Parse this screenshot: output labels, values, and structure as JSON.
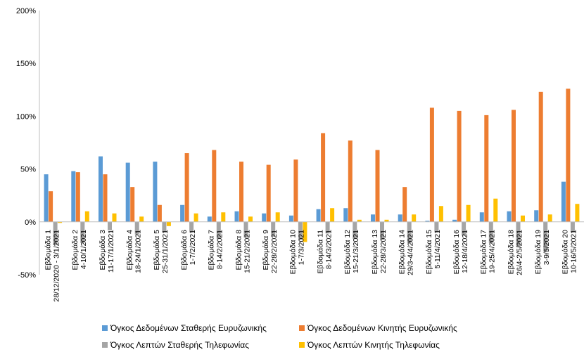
{
  "chart_data": {
    "type": "bar",
    "ylim": [
      -50,
      200
    ],
    "yticks": [
      -50,
      0,
      50,
      100,
      150,
      200
    ],
    "ytick_labels": [
      "-50%",
      "0%",
      "50%",
      "100%",
      "150%",
      "200%"
    ],
    "grid": false,
    "legend_position": "bottom",
    "categories": [
      [
        "Εβδομάδα 1",
        "28/12/2020 - 3/1/2021"
      ],
      [
        "Εβδομάδα 2",
        "4-10/1/2021"
      ],
      [
        "Εβδομάδα 3",
        "11-17/1/2021"
      ],
      [
        "Εβδομάδα 4",
        "18-24/1/2021"
      ],
      [
        "Εβδομάδα 5",
        "25-31/1/2021"
      ],
      [
        "Εβδομάδα 6",
        "1-7/2/2021"
      ],
      [
        "Εβδομάδα 7",
        "8-14/2/2021"
      ],
      [
        "Εβδομάδα 8",
        "15-21/2/2021"
      ],
      [
        "Εβδομάδα 9",
        "22-28/2/2021"
      ],
      [
        "Εβδομάδα 10",
        "1-7/3/2021"
      ],
      [
        "Εβδομάδα 11",
        "8-14/3/2021"
      ],
      [
        "Εβδομάδα 12",
        "15-21/3/2021"
      ],
      [
        "Εβδομάδα 13",
        "22-28/3/2021"
      ],
      [
        "Εβδομάδα 14",
        "29/3-4/4/2021"
      ],
      [
        "Εβδομάδα 15",
        "5-11/4/2021"
      ],
      [
        "Εβδομάδα 16",
        "12-18/4/2021"
      ],
      [
        "Εβδομάδα 17",
        "19-25/4/2021"
      ],
      [
        "Εβδομάδα 18",
        "26/4-2/5/2021"
      ],
      [
        "Εβδομάδα 19",
        "3-9/5/2021"
      ],
      [
        "Εβδομάδα 20",
        "10-16/5/2021"
      ]
    ],
    "series": [
      {
        "name": "Όγκος Δεδομένων Σταθερής Ευρυζωνικής",
        "color": "#5B9BD5",
        "values": [
          45,
          48,
          62,
          56,
          57,
          16,
          5,
          10,
          8,
          6,
          12,
          13,
          7,
          7,
          1,
          2,
          9,
          10,
          11,
          38
        ]
      },
      {
        "name": "Όγκος Δεδομένων Κινητής Ευρυζωνικής",
        "color": "#ED7D31",
        "values": [
          29,
          47,
          45,
          33,
          16,
          65,
          68,
          57,
          54,
          59,
          84,
          77,
          68,
          33,
          108,
          105,
          101,
          106,
          123,
          126
        ]
      },
      {
        "name": "Όγκος Λεπτών Σταθερής Τηλεφωνίας",
        "color": "#A5A5A5",
        "values": [
          -22,
          -20,
          -8,
          -12,
          -10,
          -10,
          -16,
          -15,
          -14,
          -17,
          -11,
          -16,
          -17,
          -20,
          -10,
          -13,
          -20,
          -24,
          -28,
          -10
        ]
      },
      {
        "name": "Όγκος Λεπτών Κινητής Τηλεφωνίας",
        "color": "#FFC000",
        "values": [
          -1,
          10,
          8,
          5,
          -4,
          8,
          9,
          5,
          9,
          -19,
          13,
          2,
          2,
          7,
          15,
          16,
          22,
          6,
          7,
          17
        ]
      }
    ]
  }
}
